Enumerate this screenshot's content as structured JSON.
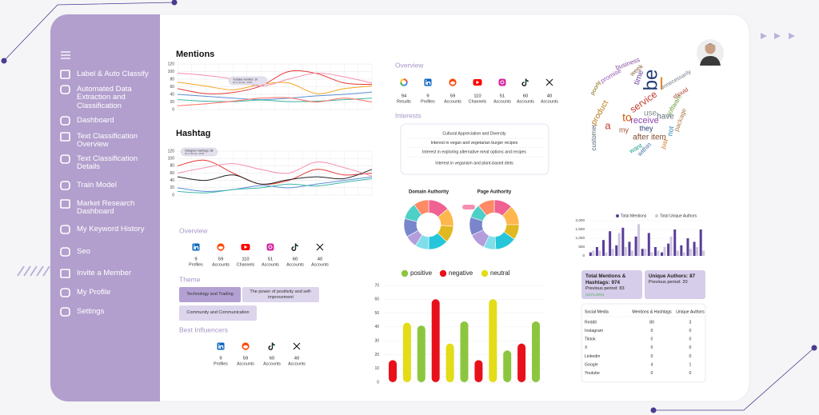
{
  "sidebar": {
    "items": [
      "Label & Auto Classify",
      "Automated Data Extraction and Classification",
      "Dashboard",
      "Text Classification Overview",
      "Text Classification Details",
      "Train Model",
      "Market Research Dashboard",
      "My Keyword History",
      "Seo",
      "Invite a Member",
      "My Profile",
      "Settings"
    ]
  },
  "mentions_chart": {
    "type": "line",
    "title": "Mentions",
    "ylim": [
      0,
      120
    ],
    "yticks": [
      0,
      20,
      40,
      60,
      80,
      100,
      120
    ],
    "series": [
      {
        "color": "#e53935",
        "values": [
          55,
          42,
          45,
          62,
          100,
          95,
          70,
          66
        ]
      },
      {
        "color": "#f5a623",
        "values": [
          72,
          62,
          52,
          66,
          70,
          42,
          55,
          62
        ]
      },
      {
        "color": "#f48fb1",
        "values": [
          96,
          90,
          80,
          62,
          80,
          96,
          86,
          70
        ]
      },
      {
        "color": "#5b8fd6",
        "values": [
          40,
          35,
          30,
          26,
          30,
          36,
          40,
          46
        ]
      },
      {
        "color": "#3fb7a8",
        "values": [
          26,
          22,
          21,
          25,
          21,
          22,
          26,
          30
        ]
      },
      {
        "color": "#ff6f61",
        "values": [
          10,
          15,
          22,
          30,
          31,
          20,
          30,
          20
        ]
      }
    ],
    "tooltip": {
      "label": "Youtube mention: 10",
      "date": "01 to 30 Apr, 2025"
    }
  },
  "hashtag_chart": {
    "type": "line",
    "title": "Hashtag",
    "ylim": [
      0,
      120
    ],
    "yticks": [
      0,
      20,
      40,
      60,
      80,
      100,
      120
    ],
    "series": [
      {
        "color": "#e53935",
        "values": [
          80,
          95,
          60,
          30,
          40,
          70,
          55,
          60
        ]
      },
      {
        "color": "#222222",
        "values": [
          50,
          40,
          55,
          30,
          42,
          50,
          45,
          70
        ]
      },
      {
        "color": "#f48fb1",
        "values": [
          60,
          75,
          86,
          70,
          60,
          90,
          75,
          52
        ]
      },
      {
        "color": "#5b8fd6",
        "values": [
          20,
          10,
          15,
          26,
          20,
          30,
          40,
          50
        ]
      },
      {
        "color": "#3fb7a8",
        "values": [
          10,
          6,
          15,
          20,
          30,
          25,
          35,
          45
        ]
      }
    ],
    "tooltip": {
      "label": "Instagram hashtags: 58",
      "date": "01 to 30 Apr, 2025"
    }
  },
  "overview_top": {
    "title": "Overview",
    "items": [
      {
        "value": 94,
        "label": "Results"
      },
      {
        "value": 9,
        "label": "Profiles"
      },
      {
        "value": 59,
        "label": "Accounts"
      },
      {
        "value": 110,
        "label": "Channels"
      },
      {
        "value": 51,
        "label": "Accounts"
      },
      {
        "value": 60,
        "label": "Accounts"
      },
      {
        "value": 40,
        "label": "Accounts"
      }
    ]
  },
  "interests": {
    "title": "Interests",
    "items": [
      "Cultural Appreciation and Diversity",
      "Interest in vegan and vegetarian burger recipes",
      "Interest in exploring alternative meat options and recipes",
      "Interest in veganism and plant-based diets"
    ]
  },
  "domain_authority": {
    "type": "donut",
    "title": "Domain Authority",
    "values": [
      14,
      12,
      11,
      13,
      9,
      8,
      12,
      11,
      10
    ],
    "colors": [
      "#f06292",
      "#ffb74d",
      "#e0b81f",
      "#26c6da",
      "#80deea",
      "#b39ddb",
      "#7986cb",
      "#4dd0c8",
      "#ff8a65"
    ]
  },
  "page_authority": {
    "type": "donut",
    "title": "Page Authority",
    "values": [
      12,
      13,
      10,
      14,
      8,
      11,
      12,
      9,
      11
    ],
    "colors": [
      "#f06292",
      "#ffb74d",
      "#e0b81f",
      "#26c6da",
      "#80deea",
      "#b39ddb",
      "#7986cb",
      "#4dd0c8",
      "#ff8a65"
    ]
  },
  "sentiment_chart": {
    "type": "bar",
    "legend": [
      {
        "name": "positive",
        "color": "#8cc63f"
      },
      {
        "name": "negative",
        "color": "#e8111b"
      },
      {
        "name": "neutral",
        "color": "#e3dc17"
      }
    ],
    "ylim": [
      0,
      70
    ],
    "yticks": [
      0,
      10,
      20,
      30,
      40,
      50,
      60,
      70
    ],
    "values": [
      16,
      43,
      41,
      60,
      28,
      44,
      16,
      60,
      23,
      28,
      44
    ],
    "colors": [
      "#e8111b",
      "#e3dc17",
      "#8cc63f",
      "#e8111b",
      "#e3dc17",
      "#8cc63f",
      "#e8111b",
      "#e3dc17",
      "#8cc63f",
      "#e8111b",
      "#8cc63f"
    ]
  },
  "word_cloud": {
    "words": [
      {
        "text": "be",
        "color": "#1f3b73"
      },
      {
        "text": "I",
        "color": "#e0892b"
      },
      {
        "text": "time",
        "color": "#6d4c9f"
      },
      {
        "text": "service",
        "color": "#c0392b"
      },
      {
        "text": "receive",
        "color": "#8e44ad"
      },
      {
        "text": "after item",
        "color": "#7b4a2a"
      },
      {
        "text": "software",
        "color": "#6a9a3a"
      },
      {
        "text": "package",
        "color": "#b07d4b"
      },
      {
        "text": "they",
        "color": "#2c3e70"
      },
      {
        "text": "use",
        "color": "#7f8c8d"
      },
      {
        "text": "have",
        "color": "#5d6d7e"
      },
      {
        "text": "my",
        "color": "#a0522d"
      },
      {
        "text": "to",
        "color": "#d35400"
      },
      {
        "text": "not",
        "color": "#2e86c1"
      },
      {
        "text": "a",
        "color": "#c0392b"
      },
      {
        "text": "promise",
        "color": "#9b59b6"
      },
      {
        "text": "product",
        "color": "#b9770e"
      },
      {
        "text": "customer",
        "color": "#566573"
      },
      {
        "text": "want",
        "color": "#16a085"
      },
      {
        "text": "business",
        "color": "#884ea0"
      },
      {
        "text": "just",
        "color": "#ca6f1e"
      },
      {
        "text": "poorly",
        "color": "#7d6608"
      },
      {
        "text": "within",
        "color": "#4a6fa5"
      },
      {
        "text": "should",
        "color": "#a93226"
      },
      {
        "text": "unnecessarily",
        "color": "#6c7a89"
      },
      {
        "text": "week",
        "color": "#8e6b3e"
      }
    ]
  },
  "authors_chart": {
    "type": "bar",
    "series": [
      {
        "name": "Total Mentions",
        "color": "#5a3d98",
        "values": [
          200,
          500,
          900,
          1400,
          600,
          1600,
          800,
          1100,
          400,
          1300,
          500,
          200,
          700,
          1500,
          600,
          1000,
          800,
          1500
        ]
      },
      {
        "name": "Total Unique Authors",
        "color": "#cdc6de",
        "values": [
          300,
          300,
          200,
          400,
          1300,
          500,
          300,
          1800,
          400,
          200,
          300,
          500,
          1100,
          300,
          200,
          400,
          500,
          300
        ]
      }
    ],
    "ylim": [
      0,
      2000
    ],
    "yticks": [
      0,
      500,
      {
        "value": 1000,
        "label": "1,000"
      },
      {
        "value": 1500,
        "label": "1,500"
      },
      {
        "value": 2000,
        "label": "2,000"
      }
    ]
  },
  "stats": [
    {
      "title": "Total Mentions & Hashtags:",
      "value": 974,
      "previous_label": "Previous period:",
      "previous": 83,
      "change": "(1073.49%)"
    },
    {
      "title": "Unique Authors:",
      "value": 87,
      "previous_label": "Previous period:",
      "previous": 20
    }
  ],
  "table": {
    "headers": [
      "Social Media",
      "Mentions & Hashtags",
      "Unique Authors"
    ],
    "rows": [
      [
        "Reddit",
        80,
        3
      ],
      [
        "Instagram",
        0,
        0
      ],
      [
        "Tiktok",
        0,
        0
      ],
      [
        "X",
        0,
        0
      ],
      [
        "Linkedin",
        0,
        0
      ],
      [
        "Google",
        4,
        1
      ],
      [
        "Youtube",
        0,
        0
      ]
    ]
  },
  "overview_bottom": {
    "title": "Overview",
    "items": [
      {
        "value": 9,
        "label": "Profiles"
      },
      {
        "value": 59,
        "label": "Accounts"
      },
      {
        "value": 110,
        "label": "Channels"
      },
      {
        "value": 51,
        "label": "Accounts"
      },
      {
        "value": 60,
        "label": "Accounts"
      },
      {
        "value": 40,
        "label": "Accounts"
      }
    ]
  },
  "theme": {
    "title": "Theme",
    "items": [
      "Technology and Trading",
      "The power of positivity and self-improvement",
      "Community and Communication"
    ]
  },
  "influencers": {
    "title": "Best Influencers",
    "items": [
      {
        "value": 9,
        "label": "Profiles"
      },
      {
        "value": 59,
        "label": "Accounts"
      },
      {
        "value": 60,
        "label": "Accounts"
      },
      {
        "value": 40,
        "label": "Accounts"
      }
    ]
  }
}
